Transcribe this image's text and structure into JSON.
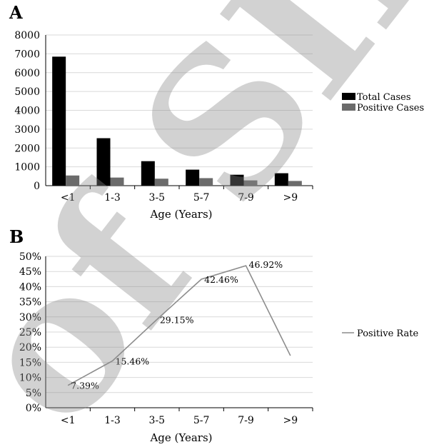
{
  "panel_a": {
    "letter": "A"
  },
  "panel_b": {
    "letter": "B"
  },
  "watermark": "of SID",
  "colors": {
    "total": "#000000",
    "positive": "#6b6b6b",
    "rate_line": "#8c8c8c",
    "grid": "#d9d9d9"
  },
  "chart_data": [
    {
      "type": "bar",
      "title": "",
      "xlabel": "Age (Years)",
      "ylabel": "",
      "categories": [
        "<1",
        "1-3",
        "3-5",
        "5-7",
        "7-9",
        ">9"
      ],
      "ylim": [
        0,
        8000
      ],
      "yticks": [
        0,
        1000,
        2000,
        3000,
        4000,
        5000,
        6000,
        7000,
        8000
      ],
      "series": [
        {
          "name": "Total Cases",
          "values": [
            6850,
            2520,
            1300,
            850,
            580,
            660
          ]
        },
        {
          "name": "Positive Cases",
          "values": [
            540,
            430,
            370,
            400,
            280,
            250
          ]
        }
      ],
      "legend": "right",
      "grid": true
    },
    {
      "type": "line",
      "title": "",
      "xlabel": "Age (Years)",
      "ylabel": "",
      "categories": [
        "<1",
        "1-3",
        "3-5",
        "5-7",
        "7-9",
        ">9"
      ],
      "ylim": [
        0,
        50
      ],
      "yticks": [
        "0%",
        "5%",
        "10%",
        "15%",
        "20%",
        "25%",
        "30%",
        "35%",
        "40%",
        "45%",
        "50%"
      ],
      "series": [
        {
          "name": "Positive Rate",
          "values": [
            7.39,
            15.46,
            29.15,
            42.46,
            46.92,
            17.2
          ],
          "labels": [
            "7.39%",
            "15.46%",
            "29.15%",
            "42.46%",
            "46.92%",
            ""
          ]
        }
      ],
      "legend": "right",
      "grid": true
    }
  ]
}
